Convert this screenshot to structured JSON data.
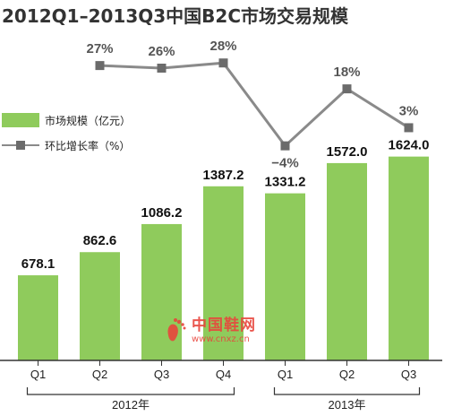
{
  "title": "2012Q1–2013Q3中国B2C市场交易规模",
  "legend": {
    "bar_label": "市场规模（亿元）",
    "line_label": "环比增长率（%）"
  },
  "watermark": {
    "name": "中国鞋网",
    "url": "www.cnxz.cn"
  },
  "colors": {
    "bar": "#8fcb5c",
    "line": "#8a8a8a",
    "marker": "#6b6b6b",
    "watermark": "#e8453c"
  },
  "chart_data": {
    "type": "bar",
    "categories": [
      "Q1",
      "Q2",
      "Q3",
      "Q4",
      "Q1",
      "Q2",
      "Q3"
    ],
    "groups": [
      {
        "label": "2012年",
        "from": 0,
        "to": 3
      },
      {
        "label": "2013年",
        "from": 4,
        "to": 6
      }
    ],
    "series": [
      {
        "name": "市场规模（亿元）",
        "type": "bar",
        "values": [
          678.1,
          862.6,
          1086.2,
          1387.2,
          1331.2,
          1572.0,
          1624.0
        ],
        "labels": [
          "678.1",
          "862.6",
          "1086.2",
          "1387.2",
          "1331.2",
          "1572.0",
          "1624.0"
        ]
      },
      {
        "name": "环比增长率（%）",
        "type": "line",
        "values": [
          null,
          27,
          26,
          28,
          -4,
          18,
          3
        ],
        "labels": [
          null,
          "27%",
          "26%",
          "28%",
          "−4%",
          "18%",
          "3%"
        ]
      }
    ],
    "bar_ylim": [
      0,
      1800
    ],
    "line_ylim": [
      -10,
      35
    ],
    "grid": false,
    "legend_position": "left"
  }
}
